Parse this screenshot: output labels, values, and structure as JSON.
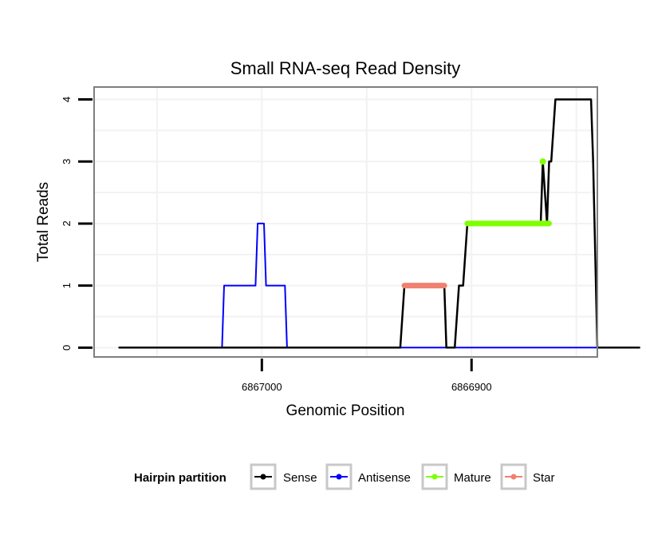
{
  "chart_data": {
    "type": "line",
    "title": "Small RNA-seq Read Density",
    "xlabel": "Genomic Position",
    "ylabel": "Total Reads",
    "x_reversed": true,
    "xlim": [
      6867080,
      6866840
    ],
    "ylim": [
      -0.15,
      4.2
    ],
    "x_ticks": [
      {
        "value": 6867000,
        "label": "6867000"
      },
      {
        "value": 6866900,
        "label": "6866900"
      }
    ],
    "y_ticks": [
      {
        "value": 0,
        "label": "0"
      },
      {
        "value": 1,
        "label": "1"
      },
      {
        "value": 2,
        "label": "2"
      },
      {
        "value": 3,
        "label": "3"
      },
      {
        "value": 4,
        "label": "4"
      }
    ],
    "grid": true,
    "series": [
      {
        "name": "Sense",
        "color": "#000000",
        "lineWidth": 2.5,
        "points": [
          [
            6867068,
            0
          ],
          [
            6866934,
            0
          ],
          [
            6866932,
            1
          ],
          [
            6866913,
            1
          ],
          [
            6866912,
            0
          ],
          [
            6866908,
            0
          ],
          [
            6866906,
            1
          ],
          [
            6866904,
            1
          ],
          [
            6866902,
            2
          ],
          [
            6866867,
            2
          ],
          [
            6866866,
            3
          ],
          [
            6866864,
            2
          ],
          [
            6866863,
            3
          ],
          [
            6866862,
            3
          ],
          [
            6866860,
            4
          ],
          [
            6866843,
            4
          ],
          [
            6866842,
            3
          ],
          [
            6866840,
            0
          ],
          [
            6866820,
            0
          ]
        ]
      },
      {
        "name": "Antisense",
        "color": "#0000ff",
        "lineWidth": 2,
        "points": [
          [
            6867068,
            0
          ],
          [
            6867019,
            0
          ],
          [
            6867018,
            1
          ],
          [
            6867003,
            1
          ],
          [
            6867002,
            2
          ],
          [
            6866999,
            2
          ],
          [
            6866998,
            1
          ],
          [
            6866989,
            1
          ],
          [
            6866988,
            0
          ],
          [
            6866840,
            0
          ]
        ]
      },
      {
        "name": "Mature",
        "color": "#7fff00",
        "lineWidth": 7,
        "points": [
          [
            6866902,
            2
          ],
          [
            6866863,
            2
          ]
        ],
        "marker_points": [
          [
            6866866,
            3
          ]
        ]
      },
      {
        "name": "Star",
        "color": "#f08070",
        "lineWidth": 7,
        "points": [
          [
            6866932,
            1
          ],
          [
            6866913,
            1
          ]
        ]
      }
    ],
    "legend": {
      "title": "Hairpin partition",
      "position": "bottom",
      "items": [
        {
          "label": "Sense",
          "color": "#000000"
        },
        {
          "label": "Antisense",
          "color": "#0000ff"
        },
        {
          "label": "Mature",
          "color": "#7fff00"
        },
        {
          "label": "Star",
          "color": "#f08070"
        }
      ]
    }
  }
}
